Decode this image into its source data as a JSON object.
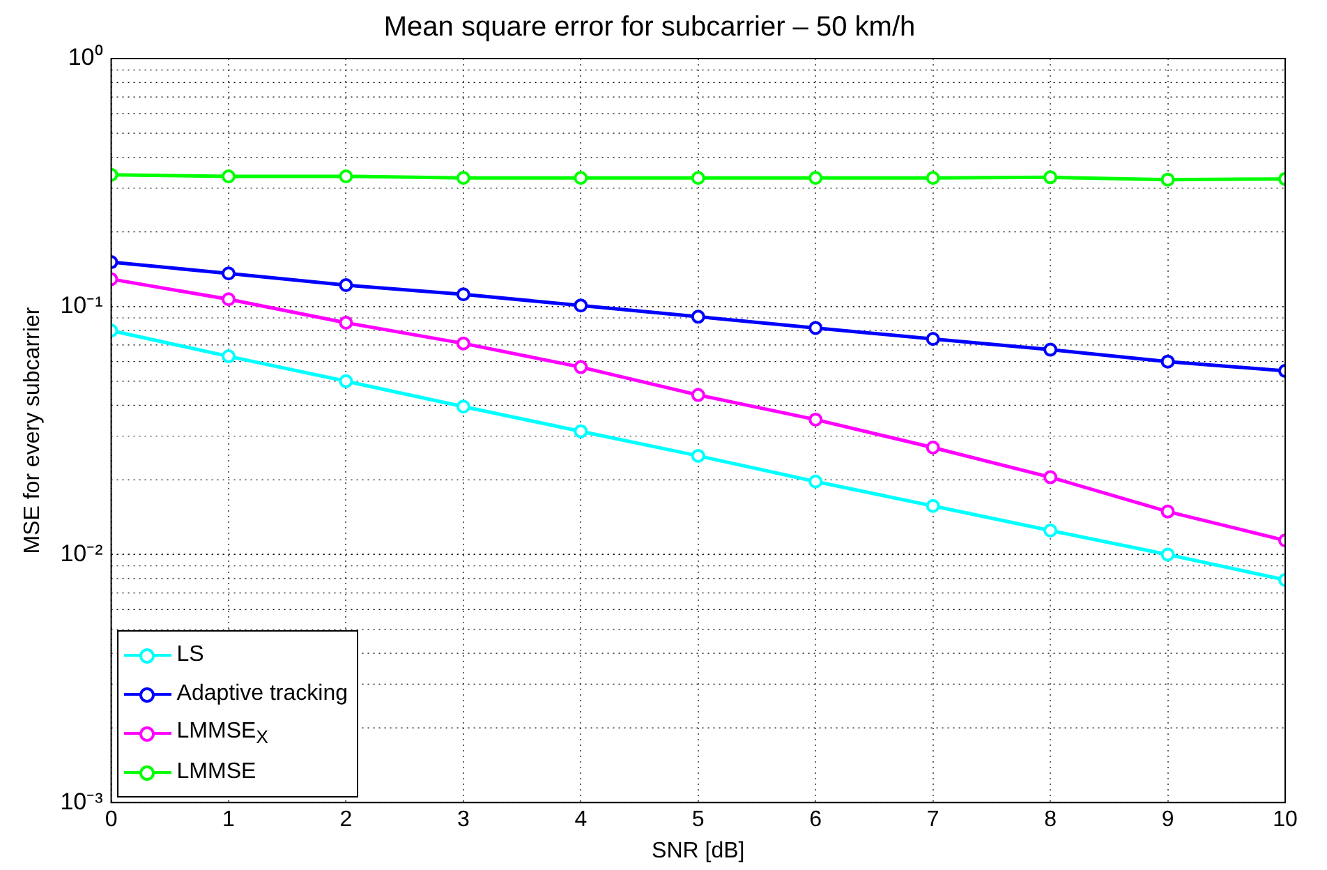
{
  "chart_data": {
    "type": "line",
    "title": "Mean square error for subcarrier – 50 km/h",
    "xlabel": "SNR [dB]",
    "ylabel": "MSE for every subcarrier",
    "x": [
      0,
      1,
      2,
      3,
      4,
      5,
      6,
      7,
      8,
      9,
      10
    ],
    "series": [
      {
        "name": "LS",
        "color": "#00ffff",
        "values": [
          0.08,
          0.063,
          0.05,
          0.0395,
          0.0314,
          0.025,
          0.0197,
          0.0157,
          0.0125,
          0.01,
          0.0079
        ]
      },
      {
        "name": "Adaptive tracking",
        "color": "#0000ff",
        "values": [
          0.151,
          0.136,
          0.122,
          0.112,
          0.101,
          0.091,
          0.082,
          0.074,
          0.067,
          0.06,
          0.055
        ]
      },
      {
        "name": "LMMSE$_{X}$",
        "color": "#ff00ff",
        "values": [
          0.129,
          0.107,
          0.086,
          0.071,
          0.057,
          0.044,
          0.035,
          0.027,
          0.0205,
          0.0149,
          0.0114
        ]
      },
      {
        "name": "LMMSE",
        "color": "#00ff00",
        "values": [
          0.34,
          0.335,
          0.335,
          0.33,
          0.33,
          0.33,
          0.33,
          0.33,
          0.332,
          0.325,
          0.327
        ]
      }
    ],
    "xlim": [
      0,
      10
    ],
    "xticks": [
      0,
      1,
      2,
      3,
      4,
      5,
      6,
      7,
      8,
      9,
      10
    ],
    "ylim": [
      0.001,
      1
    ],
    "yticks": [
      {
        "value": 0.001,
        "label": "10⁻³"
      },
      {
        "value": 0.01,
        "label": "10⁻²"
      },
      {
        "value": 0.1,
        "label": "10⁻¹"
      },
      {
        "value": 1,
        "label": "10⁰"
      }
    ],
    "log": "y",
    "grid": true,
    "legend": "bottom left",
    "marker": "circle",
    "line_style": "solid"
  }
}
